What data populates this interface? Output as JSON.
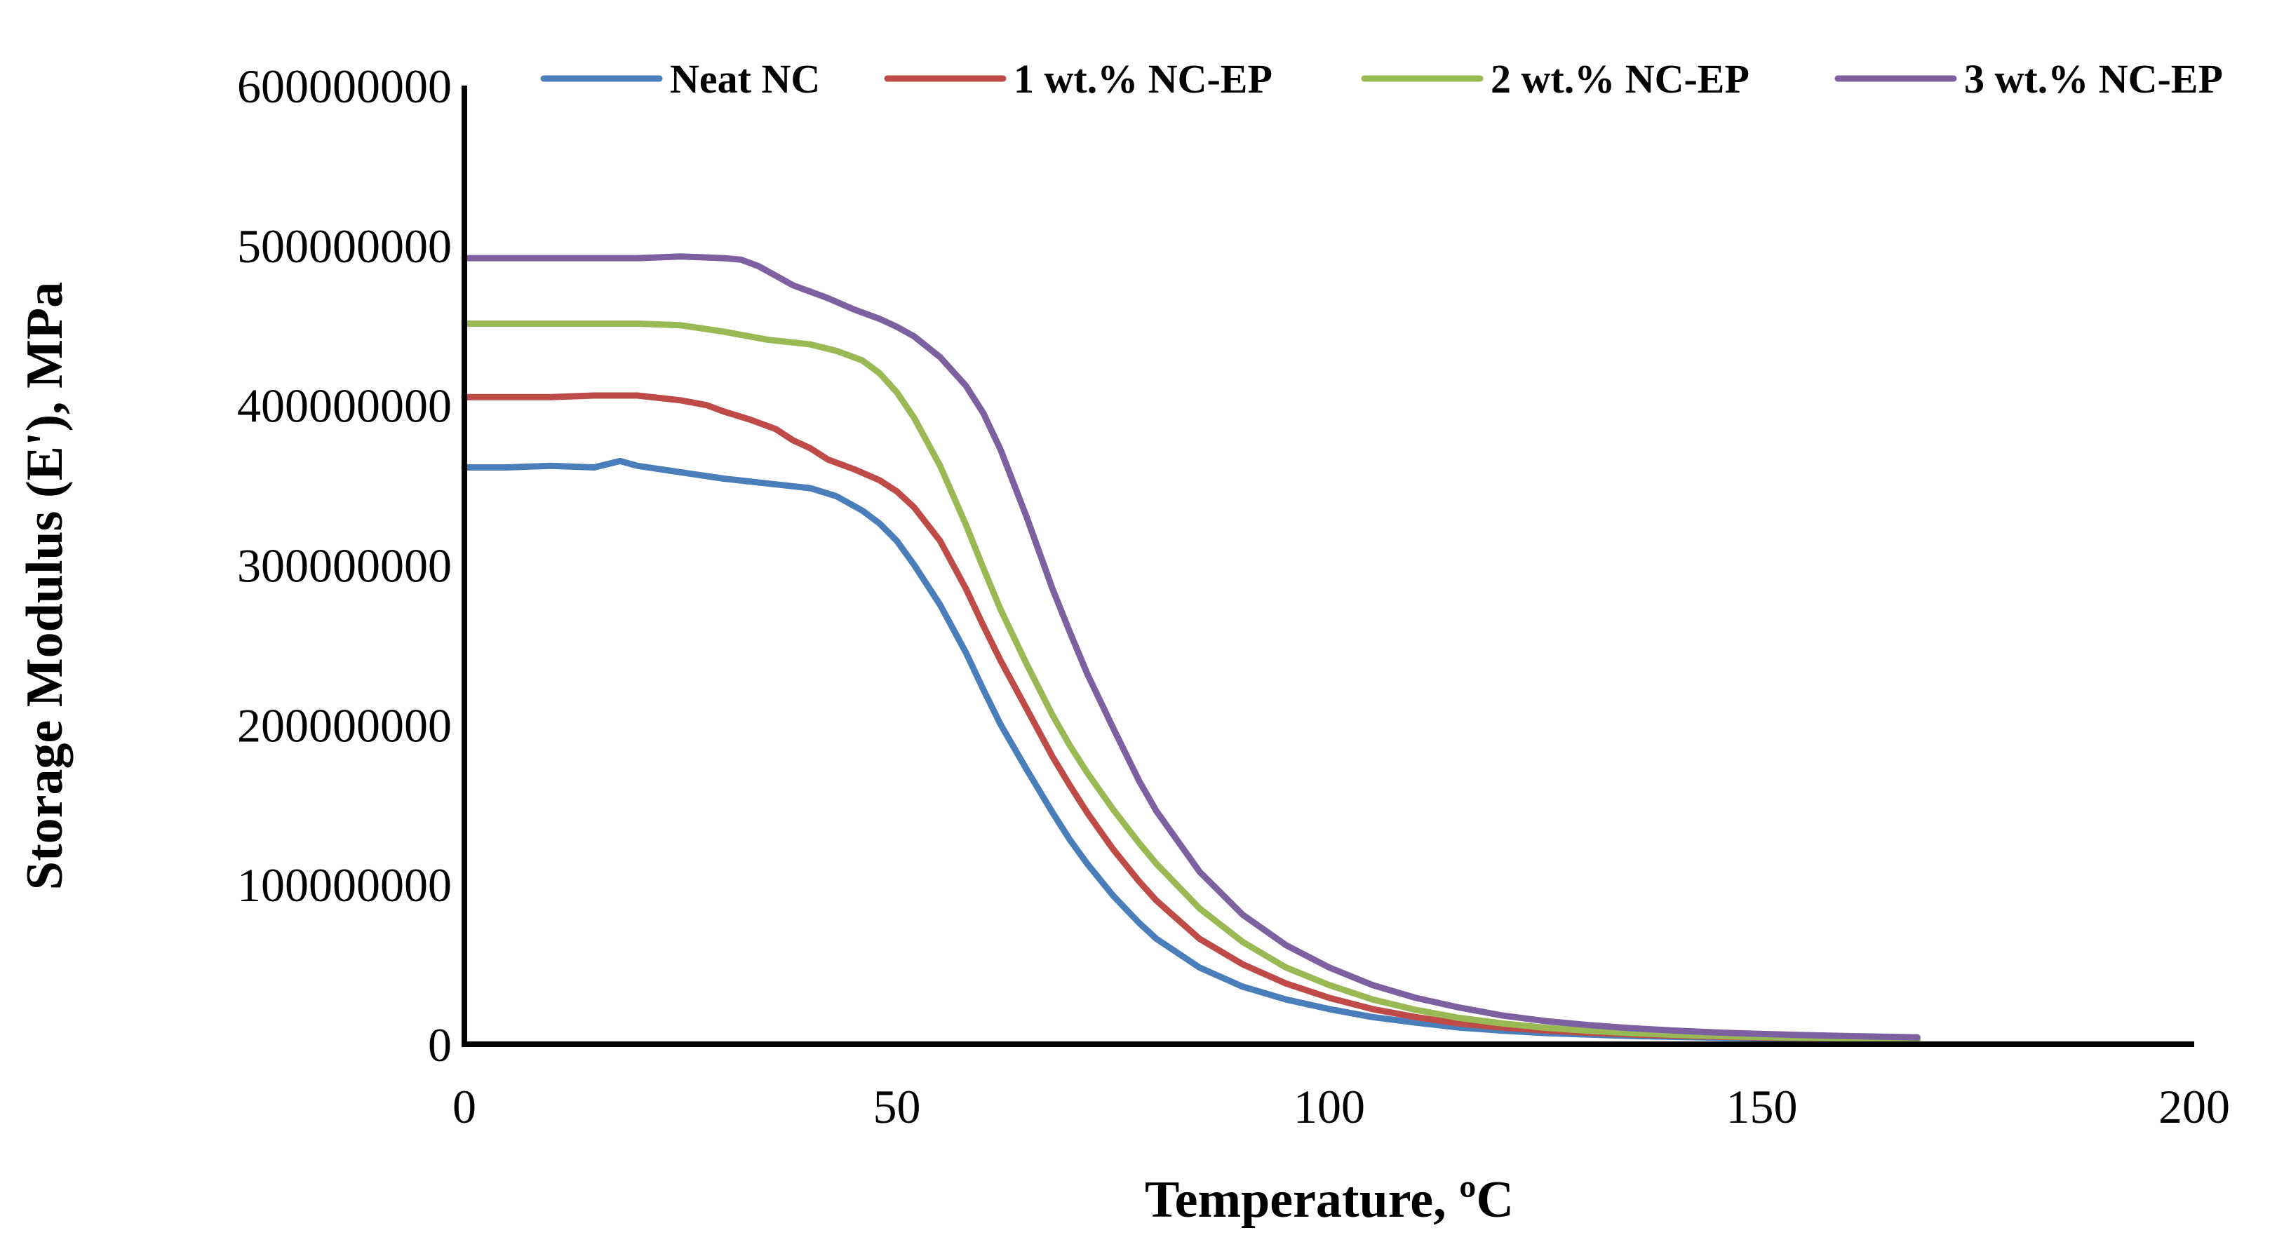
{
  "chart_data": {
    "type": "line",
    "title": "",
    "xlabel": "Temperature, ºC",
    "ylabel": "Storage Modulus (E'), MPa",
    "xlim": [
      0,
      200
    ],
    "ylim": [
      0,
      600000000
    ],
    "x_ticks": [
      "0",
      "50",
      "100",
      "150",
      "200"
    ],
    "y_ticks": [
      "0",
      "100000000",
      "200000000",
      "300000000",
      "400000000",
      "500000000",
      "600000000"
    ],
    "grid": false,
    "legend_position": "top",
    "series": [
      {
        "name": "Neat NC",
        "color": "#4A7EBB",
        "x": [
          0,
          5,
          10,
          15,
          18,
          20,
          25,
          30,
          35,
          40,
          43,
          46,
          48,
          50,
          52,
          55,
          58,
          60,
          62,
          65,
          68,
          70,
          72,
          75,
          78,
          80,
          85,
          90,
          95,
          100,
          105,
          110,
          115,
          120,
          125,
          130,
          135,
          140,
          145,
          150,
          155,
          160,
          165,
          168
        ],
        "y": [
          361000000,
          361000000,
          362000000,
          361000000,
          365000000,
          362000000,
          358000000,
          354000000,
          351000000,
          348000000,
          343000000,
          334000000,
          326000000,
          315000000,
          300000000,
          275000000,
          245000000,
          222000000,
          200000000,
          172000000,
          145000000,
          128000000,
          113000000,
          93000000,
          76000000,
          66000000,
          48000000,
          36000000,
          28000000,
          22000000,
          17000000,
          13500000,
          10500000,
          8500000,
          7000000,
          6000000,
          5200000,
          4600000,
          4100000,
          3700000,
          3400000,
          3100000,
          2900000,
          2800000
        ]
      },
      {
        "name": "1 wt.% NC-EP",
        "color": "#BE4B48",
        "x": [
          0,
          5,
          10,
          15,
          20,
          25,
          28,
          30,
          33,
          36,
          38,
          40,
          42,
          45,
          48,
          50,
          52,
          55,
          58,
          60,
          62,
          65,
          68,
          70,
          72,
          75,
          78,
          80,
          85,
          90,
          95,
          100,
          105,
          110,
          115,
          120,
          125,
          130,
          135,
          140,
          145,
          150,
          155,
          160,
          165,
          168
        ],
        "y": [
          405000000,
          405000000,
          405000000,
          406000000,
          406000000,
          403000000,
          400000000,
          396000000,
          391000000,
          385000000,
          378000000,
          373000000,
          366000000,
          360000000,
          353000000,
          346000000,
          336000000,
          315000000,
          285000000,
          262000000,
          240000000,
          210000000,
          180000000,
          162000000,
          145000000,
          122000000,
          102000000,
          90000000,
          66000000,
          50000000,
          38000000,
          29000000,
          22000000,
          17000000,
          13000000,
          10500000,
          8600000,
          7200000,
          6100000,
          5300000,
          4700000,
          4200000,
          3800000,
          3500000,
          3200000,
          3000000
        ]
      },
      {
        "name": "2 wt.% NC-EP",
        "color": "#98B954",
        "x": [
          0,
          5,
          10,
          15,
          20,
          25,
          30,
          35,
          40,
          43,
          46,
          48,
          50,
          52,
          55,
          58,
          60,
          62,
          65,
          68,
          70,
          72,
          75,
          78,
          80,
          85,
          90,
          95,
          100,
          105,
          110,
          115,
          120,
          125,
          130,
          135,
          140,
          145,
          150,
          155,
          160,
          165,
          168
        ],
        "y": [
          451000000,
          451000000,
          451000000,
          451000000,
          451000000,
          450000000,
          446000000,
          441000000,
          438000000,
          434000000,
          428000000,
          420000000,
          408000000,
          392000000,
          362000000,
          325000000,
          298000000,
          272000000,
          238000000,
          206000000,
          187000000,
          170000000,
          147000000,
          126000000,
          113000000,
          85000000,
          64000000,
          48000000,
          37000000,
          28000000,
          21500000,
          16500000,
          13000000,
          10300000,
          8400000,
          7000000,
          5900000,
          5100000,
          4500000,
          4000000,
          3600000,
          3300000,
          3100000
        ]
      },
      {
        "name": "3 wt.% NC-EP",
        "color": "#7D60A0",
        "x": [
          0,
          5,
          10,
          15,
          20,
          25,
          30,
          32,
          34,
          36,
          38,
          40,
          42,
          45,
          48,
          50,
          52,
          55,
          58,
          60,
          62,
          65,
          68,
          70,
          72,
          75,
          78,
          80,
          85,
          90,
          95,
          100,
          105,
          110,
          115,
          120,
          125,
          130,
          135,
          140,
          145,
          150,
          155,
          160,
          165,
          168
        ],
        "y": [
          492000000,
          492000000,
          492000000,
          492000000,
          492000000,
          493000000,
          492000000,
          491000000,
          487000000,
          481000000,
          475000000,
          471000000,
          467000000,
          460000000,
          454000000,
          449000000,
          443000000,
          430000000,
          412000000,
          395000000,
          372000000,
          330000000,
          285000000,
          258000000,
          232000000,
          198000000,
          165000000,
          146000000,
          108000000,
          81000000,
          62000000,
          48000000,
          37000000,
          29000000,
          23000000,
          18000000,
          14500000,
          12000000,
          10000000,
          8500000,
          7300000,
          6400000,
          5700000,
          5100000,
          4600000,
          4300000
        ]
      }
    ]
  }
}
